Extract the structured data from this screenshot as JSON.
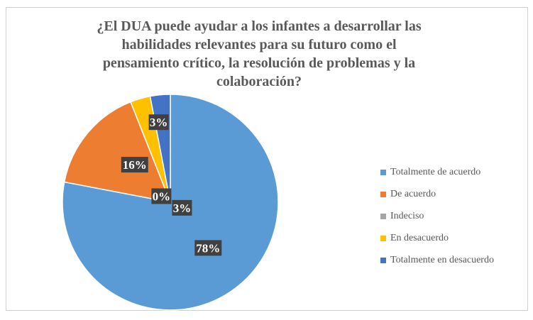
{
  "chart_data": {
    "type": "pie",
    "title": "¿El DUA puede ayudar a los infantes a desarrollar las habilidades relevantes para su futuro como el pensamiento crítico, la resolución de problemas y la colaboración?",
    "title_lines": [
      "¿El DUA puede ayudar a los infantes a desarrollar las",
      "habilidades relevantes para su futuro como el",
      "pensamiento crítico, la resolución de problemas y la",
      "colaboración?"
    ],
    "categories": [
      "Totalmente de acuerdo",
      "De acuerdo",
      "Indeciso",
      "En desacuerdo",
      "Totalmente en desacuerdo"
    ],
    "values": [
      78,
      16,
      0,
      3,
      3
    ],
    "data_labels": [
      "78%",
      "16%",
      "0%",
      "3%",
      "3%"
    ],
    "colors": [
      "#5b9bd5",
      "#ed7d31",
      "#a5a5a5",
      "#ffc000",
      "#4472c4"
    ],
    "legend_position": "right"
  }
}
